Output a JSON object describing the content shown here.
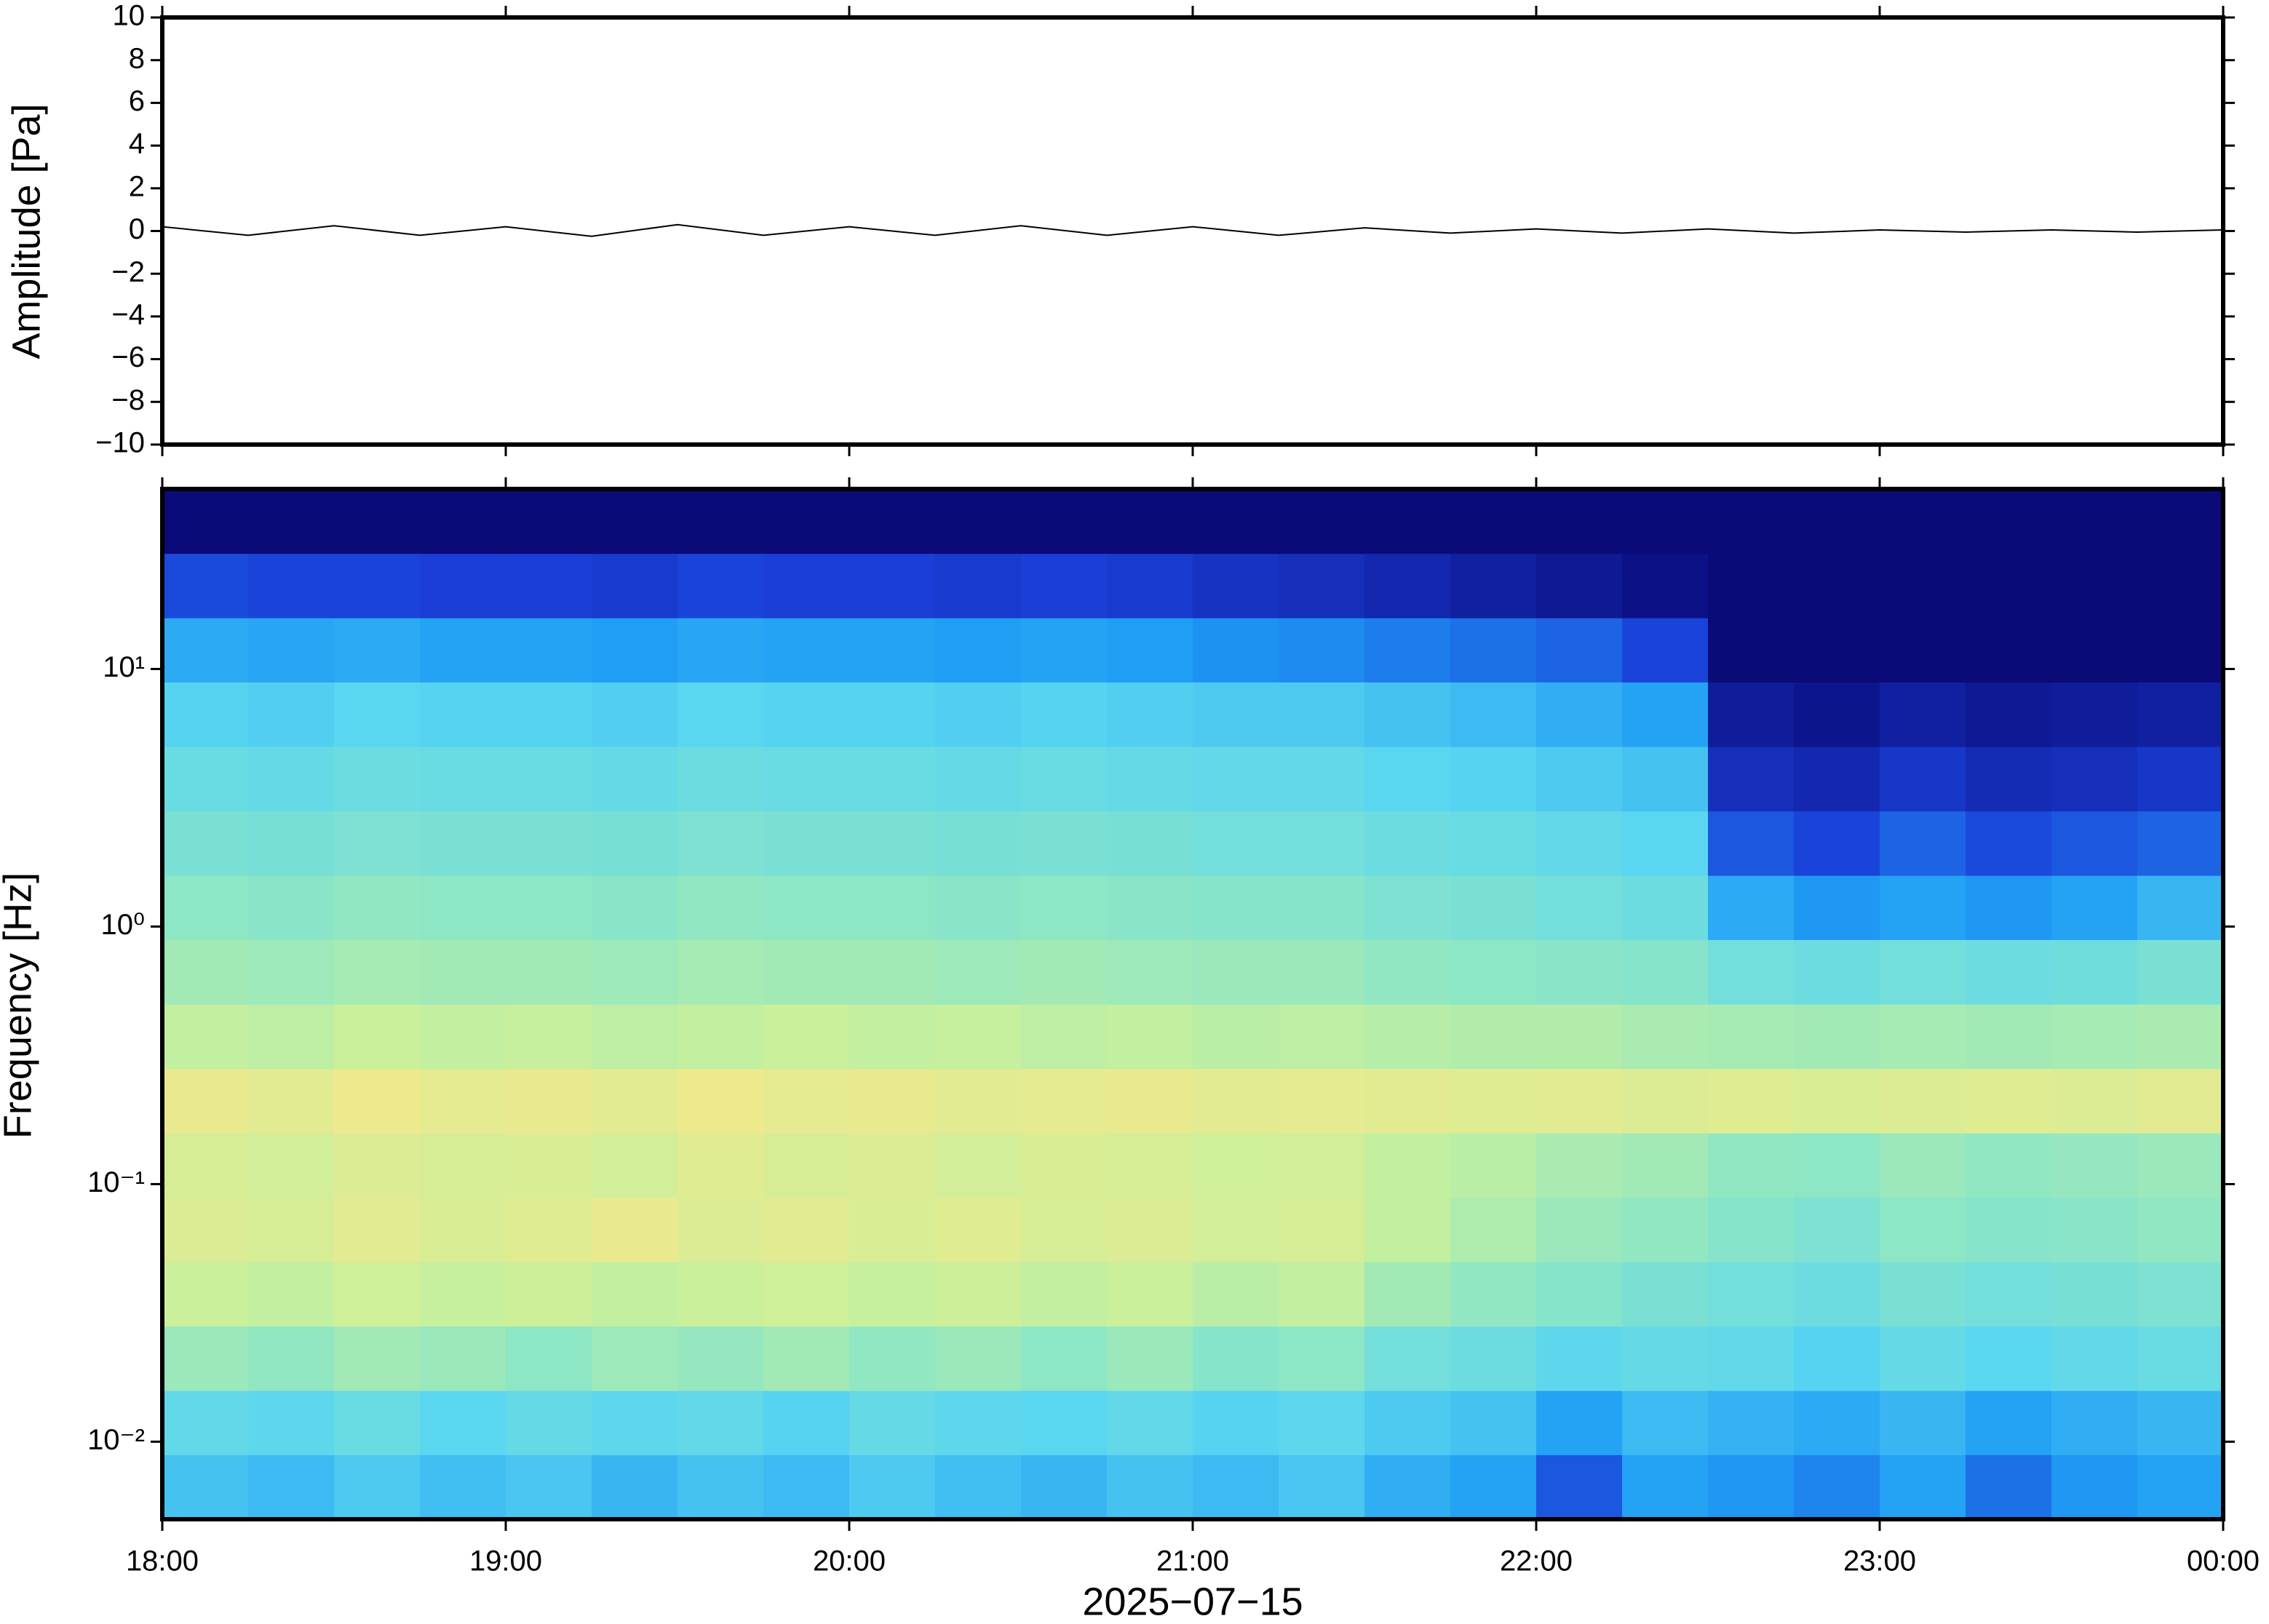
{
  "chart_data": [
    {
      "type": "line",
      "ylabel": "Amplitude [Pa]",
      "color": "#000000",
      "xlim": [
        18,
        24
      ],
      "xticks": [
        18,
        19,
        20,
        21,
        22,
        23,
        24
      ],
      "ylim": [
        -10,
        10
      ],
      "yticks": [
        {
          "value": -10,
          "label": "−10"
        },
        {
          "value": -8,
          "label": "−8"
        },
        {
          "value": -6,
          "label": "−6"
        },
        {
          "value": -4,
          "label": "−4"
        },
        {
          "value": -2,
          "label": "−2"
        },
        0,
        2,
        4,
        6,
        8,
        10
      ],
      "x": [
        18,
        18.25,
        18.5,
        18.75,
        19,
        19.25,
        19.5,
        19.75,
        20,
        20.25,
        20.5,
        20.75,
        21,
        21.25,
        21.5,
        21.75,
        22,
        22.25,
        22.5,
        22.75,
        23,
        23.25,
        23.5,
        23.75,
        24
      ],
      "values": [
        0.2,
        -0.2,
        0.25,
        -0.2,
        0.2,
        -0.25,
        0.3,
        -0.2,
        0.2,
        -0.2,
        0.25,
        -0.2,
        0.2,
        -0.2,
        0.15,
        -0.1,
        0.1,
        -0.1,
        0.1,
        -0.1,
        0.05,
        -0.05,
        0.05,
        -0.05,
        0.05
      ]
    },
    {
      "type": "heatmap",
      "ylabel": "Frequency [Hz]",
      "xlabel": "2025−07−15",
      "log_y": true,
      "xlim": [
        18,
        24
      ],
      "xticks": [
        {
          "value": 18,
          "label": "18:00"
        },
        {
          "value": 19,
          "label": "19:00"
        },
        {
          "value": 20,
          "label": "20:00"
        },
        {
          "value": 21,
          "label": "21:00"
        },
        {
          "value": 22,
          "label": "22:00"
        },
        {
          "value": 23,
          "label": "23:00"
        },
        {
          "value": 24,
          "label": "00:00"
        }
      ],
      "ylim": [
        0.005,
        50
      ],
      "yticks": [
        {
          "value": 0.01,
          "label": "10⁻²"
        },
        {
          "value": 0.1,
          "label": "10⁻¹"
        },
        {
          "value": 1,
          "label": "10⁰"
        },
        {
          "value": 10,
          "label": "10¹"
        }
      ],
      "zlim": [
        0,
        1
      ],
      "colormap": [
        "#0a0a78",
        "#1a3fd8",
        "#1e9cf4",
        "#5ad6f0",
        "#8ee6c4",
        "#c8f09c",
        "#f4e88a",
        "#f8a868"
      ],
      "x_bins": [
        18,
        18.25,
        18.5,
        18.75,
        19,
        19.25,
        19.5,
        19.75,
        20,
        20.25,
        20.5,
        20.75,
        21,
        21.25,
        21.5,
        21.75,
        22,
        22.25,
        22.5,
        22.75,
        23,
        23.25,
        23.5,
        23.75,
        24
      ],
      "y_bins": [
        0.005,
        0.0089,
        0.0158,
        0.0281,
        0.05,
        0.089,
        0.158,
        0.281,
        0.5,
        0.89,
        1.58,
        2.81,
        5,
        8.9,
        15.8,
        28.1,
        50
      ],
      "z": [
        [
          0.38,
          0.36,
          0.4,
          0.37,
          0.39,
          0.35,
          0.38,
          0.36,
          0.4,
          0.37,
          0.35,
          0.38,
          0.36,
          0.39,
          0.33,
          0.3,
          0.18,
          0.3,
          0.28,
          0.25,
          0.3,
          0.22,
          0.28,
          0.3
        ],
        [
          0.45,
          0.44,
          0.47,
          0.43,
          0.46,
          0.44,
          0.45,
          0.42,
          0.46,
          0.44,
          0.43,
          0.45,
          0.42,
          0.44,
          0.4,
          0.38,
          0.3,
          0.36,
          0.34,
          0.32,
          0.35,
          0.3,
          0.33,
          0.35
        ],
        [
          0.6,
          0.58,
          0.62,
          0.6,
          0.57,
          0.61,
          0.59,
          0.62,
          0.58,
          0.6,
          0.57,
          0.6,
          0.55,
          0.57,
          0.5,
          0.48,
          0.44,
          0.46,
          0.45,
          0.42,
          0.46,
          0.43,
          0.45,
          0.47
        ],
        [
          0.72,
          0.7,
          0.74,
          0.71,
          0.73,
          0.7,
          0.72,
          0.74,
          0.71,
          0.73,
          0.7,
          0.72,
          0.68,
          0.7,
          0.62,
          0.58,
          0.55,
          0.52,
          0.5,
          0.48,
          0.52,
          0.5,
          0.51,
          0.53
        ],
        [
          0.78,
          0.76,
          0.8,
          0.77,
          0.79,
          0.82,
          0.78,
          0.8,
          0.77,
          0.79,
          0.76,
          0.78,
          0.75,
          0.76,
          0.7,
          0.65,
          0.6,
          0.58,
          0.55,
          0.53,
          0.57,
          0.55,
          0.56,
          0.58
        ],
        [
          0.76,
          0.75,
          0.78,
          0.76,
          0.77,
          0.75,
          0.79,
          0.76,
          0.78,
          0.75,
          0.77,
          0.76,
          0.74,
          0.75,
          0.7,
          0.68,
          0.64,
          0.62,
          0.58,
          0.57,
          0.6,
          0.58,
          0.59,
          0.6
        ],
        [
          0.82,
          0.8,
          0.83,
          0.81,
          0.82,
          0.8,
          0.83,
          0.81,
          0.82,
          0.8,
          0.81,
          0.82,
          0.8,
          0.81,
          0.8,
          0.79,
          0.8,
          0.78,
          0.79,
          0.77,
          0.78,
          0.79,
          0.78,
          0.8
        ],
        [
          0.7,
          0.69,
          0.72,
          0.7,
          0.71,
          0.69,
          0.7,
          0.72,
          0.7,
          0.71,
          0.69,
          0.7,
          0.68,
          0.69,
          0.67,
          0.66,
          0.66,
          0.64,
          0.63,
          0.62,
          0.63,
          0.62,
          0.63,
          0.64
        ],
        [
          0.62,
          0.61,
          0.63,
          0.62,
          0.62,
          0.61,
          0.63,
          0.62,
          0.62,
          0.61,
          0.62,
          0.61,
          0.6,
          0.6,
          0.58,
          0.57,
          0.56,
          0.55,
          0.5,
          0.48,
          0.5,
          0.48,
          0.49,
          0.52
        ],
        [
          0.57,
          0.56,
          0.58,
          0.57,
          0.57,
          0.56,
          0.58,
          0.57,
          0.57,
          0.56,
          0.57,
          0.56,
          0.55,
          0.55,
          0.53,
          0.52,
          0.5,
          0.48,
          0.32,
          0.28,
          0.3,
          0.28,
          0.3,
          0.35
        ],
        [
          0.52,
          0.51,
          0.53,
          0.52,
          0.52,
          0.51,
          0.53,
          0.52,
          0.52,
          0.51,
          0.52,
          0.51,
          0.5,
          0.5,
          0.48,
          0.47,
          0.45,
          0.43,
          0.18,
          0.15,
          0.2,
          0.16,
          0.18,
          0.2
        ],
        [
          0.47,
          0.46,
          0.48,
          0.47,
          0.47,
          0.46,
          0.48,
          0.47,
          0.47,
          0.46,
          0.47,
          0.46,
          0.45,
          0.45,
          0.43,
          0.42,
          0.4,
          0.38,
          0.1,
          0.08,
          0.12,
          0.09,
          0.1,
          0.12
        ],
        [
          0.42,
          0.41,
          0.43,
          0.42,
          0.42,
          0.41,
          0.43,
          0.42,
          0.42,
          0.41,
          0.42,
          0.41,
          0.4,
          0.4,
          0.38,
          0.36,
          0.33,
          0.3,
          0.05,
          0.03,
          0.06,
          0.04,
          0.05,
          0.06
        ],
        [
          0.32,
          0.31,
          0.32,
          0.3,
          0.3,
          0.29,
          0.31,
          0.3,
          0.3,
          0.29,
          0.3,
          0.29,
          0.27,
          0.26,
          0.24,
          0.22,
          0.2,
          0.15,
          0,
          0,
          0,
          0,
          0,
          0
        ],
        [
          0.16,
          0.15,
          0.15,
          0.14,
          0.14,
          0.13,
          0.15,
          0.14,
          0.14,
          0.13,
          0.14,
          0.13,
          0.11,
          0.1,
          0.08,
          0.06,
          0.04,
          0.02,
          0,
          0,
          0,
          0,
          0,
          0
        ],
        [
          0,
          0,
          0,
          0,
          0,
          0,
          0,
          0,
          0,
          0,
          0,
          0,
          0,
          0,
          0,
          0,
          0,
          0,
          0,
          0,
          0,
          0,
          0,
          0
        ]
      ]
    }
  ]
}
